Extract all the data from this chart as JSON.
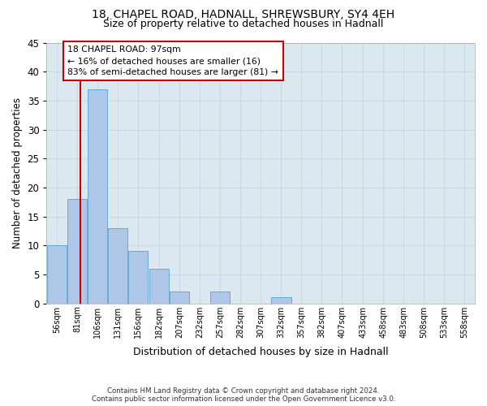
{
  "title_line1": "18, CHAPEL ROAD, HADNALL, SHREWSBURY, SY4 4EH",
  "title_line2": "Size of property relative to detached houses in Hadnall",
  "xlabel": "Distribution of detached houses by size in Hadnall",
  "ylabel": "Number of detached properties",
  "footnote": "Contains HM Land Registry data © Crown copyright and database right 2024.\nContains public sector information licensed under the Open Government Licence v3.0.",
  "bin_labels": [
    "56sqm",
    "81sqm",
    "106sqm",
    "131sqm",
    "156sqm",
    "182sqm",
    "207sqm",
    "232sqm",
    "257sqm",
    "282sqm",
    "307sqm",
    "332sqm",
    "357sqm",
    "382sqm",
    "407sqm",
    "433sqm",
    "458sqm",
    "483sqm",
    "508sqm",
    "533sqm",
    "558sqm"
  ],
  "bin_edges": [
    56,
    81,
    106,
    131,
    156,
    182,
    207,
    232,
    257,
    282,
    307,
    332,
    357,
    382,
    407,
    433,
    458,
    483,
    508,
    533,
    558
  ],
  "bar_values": [
    10,
    18,
    37,
    13,
    9,
    6,
    2,
    0,
    2,
    0,
    0,
    1,
    0,
    0,
    0,
    0,
    0,
    0,
    0,
    0
  ],
  "bar_color": "#aec6e8",
  "bar_edge_color": "#6aaad4",
  "grid_color": "#c8d8e8",
  "bg_color": "#dce8f0",
  "property_size": 97,
  "vline_color": "#cc0000",
  "annotation_text": "18 CHAPEL ROAD: 97sqm\n← 16% of detached houses are smaller (16)\n83% of semi-detached houses are larger (81) →",
  "annotation_box_color": "#ffffff",
  "annotation_box_edge": "#cc0000",
  "ylim": [
    0,
    45
  ],
  "yticks": [
    0,
    5,
    10,
    15,
    20,
    25,
    30,
    35,
    40,
    45
  ]
}
